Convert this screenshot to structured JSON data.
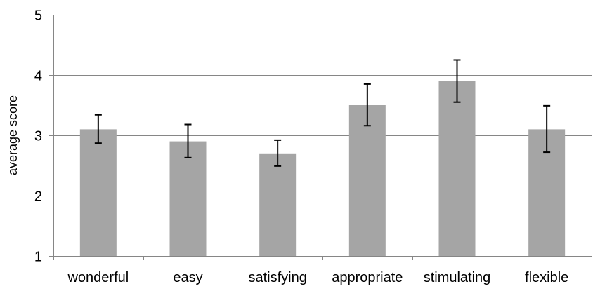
{
  "chart_data": {
    "type": "bar",
    "categories": [
      "wonderful",
      "easy",
      "satisfying",
      "appropriate",
      "stimulating",
      "flexible"
    ],
    "values": [
      3.1,
      2.9,
      2.7,
      3.5,
      3.9,
      3.1
    ],
    "error_low": [
      2.87,
      2.63,
      2.49,
      3.16,
      3.55,
      2.72
    ],
    "error_high": [
      3.34,
      3.18,
      2.92,
      3.85,
      4.25,
      3.49
    ],
    "title": "",
    "xlabel": "",
    "ylabel": "average score",
    "ylim": [
      1,
      5
    ],
    "yticks": [
      1,
      2,
      3,
      4,
      5
    ],
    "grid": "horizontal",
    "legend": "none",
    "colors": {
      "bar": "#a5a5a5",
      "axis": "#868686",
      "error_bar": "#000000"
    }
  }
}
